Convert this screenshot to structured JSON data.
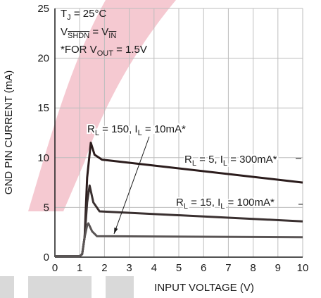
{
  "chart_data": {
    "type": "line",
    "xlabel": "INPUT VOLTAGE (V)",
    "ylabel": "GND PIN CURRENT (mA)",
    "xlim": [
      0,
      10
    ],
    "xticks": [
      0,
      1,
      2,
      3,
      4,
      5,
      6,
      7,
      8,
      9,
      10
    ],
    "ylim": [
      0,
      25
    ],
    "yticks": [
      0,
      5,
      10,
      15,
      20,
      25
    ],
    "grid": true,
    "annotations": [
      {
        "parts": [
          "T",
          "J",
          " = 25°C"
        ]
      },
      {
        "parts": [
          "V",
          "SHDN",
          " = V",
          "IN"
        ],
        "overline_sub": true
      },
      {
        "parts": [
          "*FOR V",
          "OUT",
          " = 1.5V"
        ]
      }
    ],
    "series": [
      {
        "label": [
          "R",
          "L",
          " = 5, I",
          "L",
          " = 300mA*"
        ],
        "color": "#2b1c1c",
        "x": [
          0,
          1,
          1.1,
          1.2,
          1.3,
          1.45,
          1.6,
          1.9,
          10
        ],
        "values": [
          0.1,
          0.1,
          0.3,
          2,
          8,
          11.5,
          10.3,
          9.8,
          7.5
        ]
      },
      {
        "label": [
          "R",
          "L",
          " = 15, I",
          "L",
          " = 100mA*"
        ],
        "color": "#3a3030",
        "x": [
          0,
          1,
          1.1,
          1.2,
          1.3,
          1.4,
          1.55,
          1.8,
          10
        ],
        "values": [
          0.1,
          0.1,
          0.3,
          2,
          5.5,
          7.2,
          5.5,
          4.6,
          3.6
        ]
      },
      {
        "label": [
          "R",
          "L",
          " = 150, I",
          "L",
          " = 10mA*"
        ],
        "color": "#5a5555",
        "x": [
          0,
          1,
          1.1,
          1.2,
          1.3,
          1.35,
          1.5,
          1.7,
          10
        ],
        "values": [
          0.1,
          0.1,
          0.3,
          2,
          3.2,
          3.4,
          2.6,
          2.1,
          2.0
        ]
      }
    ]
  }
}
